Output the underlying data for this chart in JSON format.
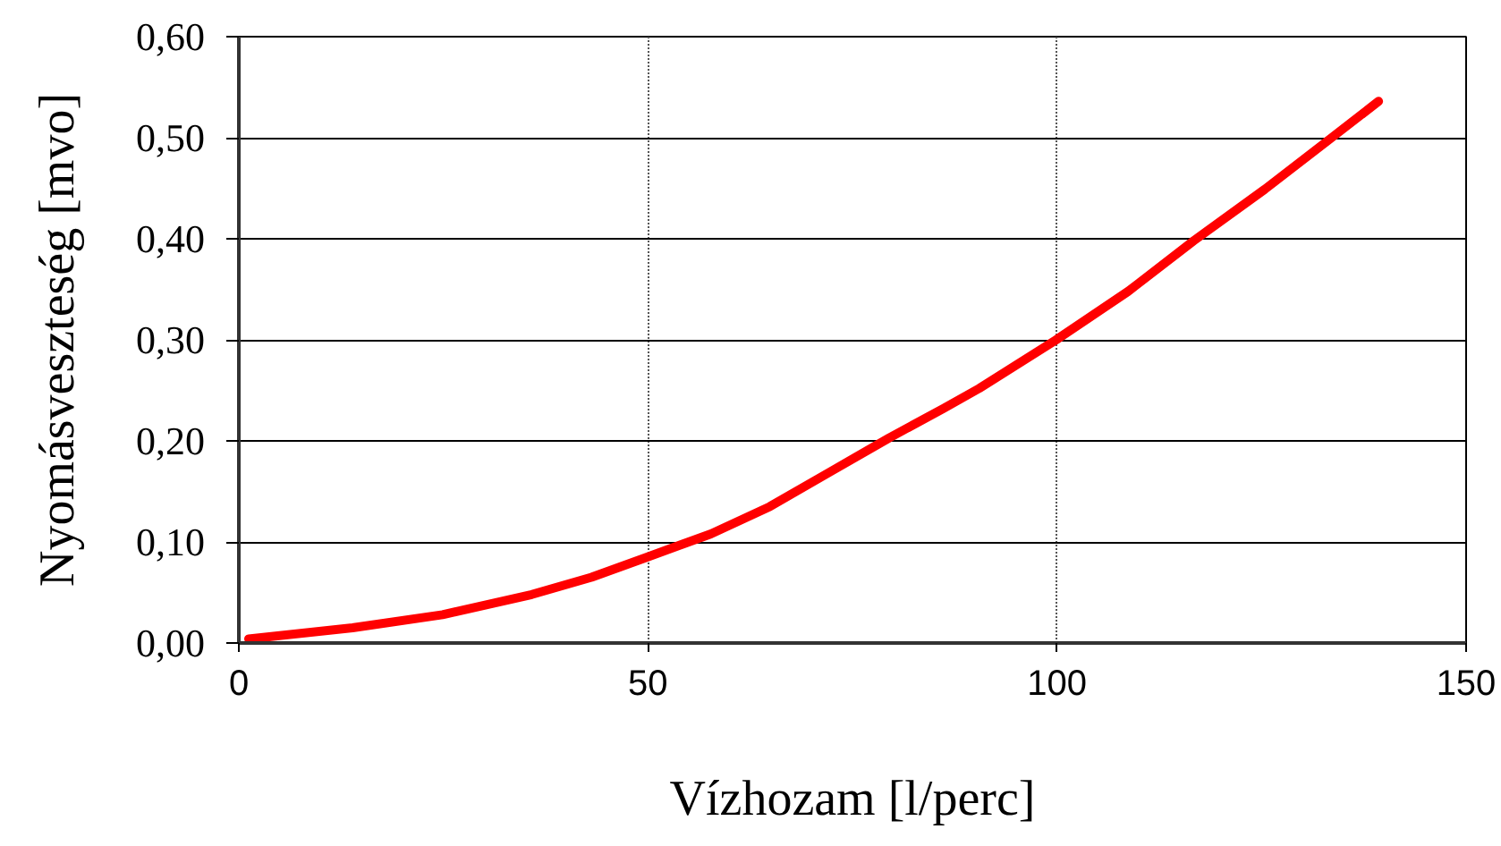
{
  "chart_data": {
    "type": "line",
    "xlabel": "Vízhozam [l/perc]",
    "ylabel": "Nyomásveszteség [mvo]",
    "series": [
      {
        "color": "#ff0000",
        "x": [
          1.2,
          13.9,
          24.9,
          35.8,
          43.1,
          49.9,
          57.7,
          64.9,
          72.2,
          79.5,
          86.1,
          90.5,
          99.9,
          108.7,
          116.7,
          125.4,
          133.4,
          139.3
        ],
        "values": [
          0.004,
          0.015,
          0.028,
          0.048,
          0.065,
          0.085,
          0.108,
          0.135,
          0.169,
          0.203,
          0.232,
          0.252,
          0.3,
          0.348,
          0.398,
          0.449,
          0.499,
          0.536
        ]
      }
    ],
    "xlim": [
      0,
      150
    ],
    "xticks": [
      0,
      50,
      100,
      150
    ],
    "ylim": [
      0,
      0.6
    ],
    "yticks": [
      {
        "value": 0,
        "label": "0,00"
      },
      {
        "value": 0.1,
        "label": "0,10"
      },
      {
        "value": 0.2,
        "label": "0,20"
      },
      {
        "value": 0.3,
        "label": "0,30"
      },
      {
        "value": 0.4,
        "label": "0,40"
      },
      {
        "value": 0.5,
        "label": "0,50"
      },
      {
        "value": 0.6,
        "label": "0,60"
      }
    ],
    "grid": true
  }
}
